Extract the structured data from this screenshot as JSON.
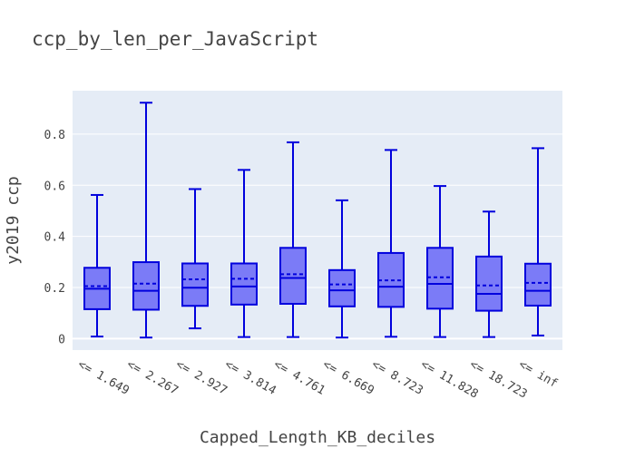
{
  "chart_data": {
    "type": "box",
    "title": "ccp_by_len_per_JavaScript",
    "xlabel": "Capped_Length_KB_deciles",
    "ylabel": "y2019 ccp",
    "categories": [
      "<= 1.649",
      "<= 2.267",
      "<= 2.927",
      "<= 3.814",
      "<= 4.761",
      "<= 6.669",
      "<= 8.723",
      "<= 11.828",
      "<= 18.723",
      "<= inf"
    ],
    "boxes": [
      {
        "min": 0.008,
        "q1": 0.115,
        "median": 0.195,
        "mean": 0.205,
        "q3": 0.277,
        "max": 0.562
      },
      {
        "min": 0.004,
        "q1": 0.113,
        "median": 0.187,
        "mean": 0.215,
        "q3": 0.299,
        "max": 0.923
      },
      {
        "min": 0.04,
        "q1": 0.128,
        "median": 0.199,
        "mean": 0.232,
        "q3": 0.294,
        "max": 0.585
      },
      {
        "min": 0.006,
        "q1": 0.133,
        "median": 0.204,
        "mean": 0.234,
        "q3": 0.294,
        "max": 0.66
      },
      {
        "min": 0.006,
        "q1": 0.136,
        "median": 0.237,
        "mean": 0.252,
        "q3": 0.355,
        "max": 0.768
      },
      {
        "min": 0.004,
        "q1": 0.126,
        "median": 0.189,
        "mean": 0.212,
        "q3": 0.268,
        "max": 0.541
      },
      {
        "min": 0.007,
        "q1": 0.124,
        "median": 0.203,
        "mean": 0.228,
        "q3": 0.335,
        "max": 0.738
      },
      {
        "min": 0.006,
        "q1": 0.117,
        "median": 0.214,
        "mean": 0.24,
        "q3": 0.355,
        "max": 0.597
      },
      {
        "min": 0.006,
        "q1": 0.109,
        "median": 0.175,
        "mean": 0.208,
        "q3": 0.321,
        "max": 0.497
      },
      {
        "min": 0.012,
        "q1": 0.129,
        "median": 0.187,
        "mean": 0.218,
        "q3": 0.293,
        "max": 0.745
      }
    ],
    "yticks": [
      0,
      0.2,
      0.4,
      0.6,
      0.8
    ],
    "ytick_labels": [
      "0",
      "0.2",
      "0.4",
      "0.6",
      "0.8"
    ],
    "ylim": [
      -0.045,
      0.97
    ],
    "grid": true,
    "colors": {
      "plot_background": "#e5ecf6",
      "gridline": "#ffffff",
      "box_fill": "#7b7bf7",
      "box_line": "#0000dd",
      "text": "#444444"
    }
  }
}
